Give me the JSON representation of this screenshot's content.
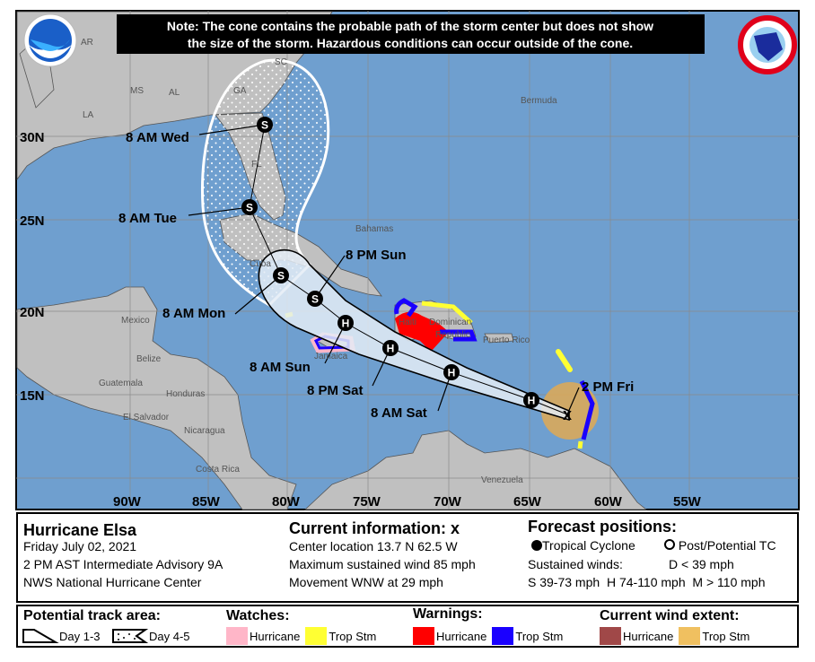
{
  "note": {
    "line1": "Note: The cone contains the probable path of the storm center but does not show",
    "line2": "the size of the storm. Hazardous conditions can occur outside of the cone."
  },
  "logos": {
    "noaa": "NOAA",
    "nws": "NATIONAL WEATHER SERVICE"
  },
  "map": {
    "lat_ticks": [
      "30N",
      "25N",
      "20N",
      "15N"
    ],
    "lon_ticks": [
      "90W",
      "85W",
      "80W",
      "75W",
      "70W",
      "65W",
      "60W",
      "55W"
    ],
    "states": [
      "AR",
      "MS",
      "AL",
      "LA",
      "GA",
      "SC",
      "FL"
    ],
    "places": [
      "Bermuda",
      "Bahamas",
      "Cuba",
      "Mexico",
      "Haiti",
      "Dominican",
      "Republic",
      "Puerto Rico",
      "Jamaica",
      "Belize",
      "Guatemala",
      "Honduras",
      "El Salvador",
      "Nicaragua",
      "Costa Rica",
      "Venezuela"
    ],
    "forecast": [
      {
        "label": "2 PM Fri",
        "symbol": "x"
      },
      {
        "label": "",
        "symbol": "H"
      },
      {
        "label": "8 AM Sat",
        "symbol": "H"
      },
      {
        "label": "8 PM Sat",
        "symbol": "H"
      },
      {
        "label": "8 AM Sun",
        "symbol": "H"
      },
      {
        "label": "8 PM Sun",
        "symbol": "S"
      },
      {
        "label": "8 AM Mon",
        "symbol": "S"
      },
      {
        "label": "8 AM Tue",
        "symbol": "S"
      },
      {
        "label": "8 AM Wed",
        "symbol": "S"
      }
    ],
    "colors": {
      "ocean": "#6f9fcf",
      "land": "#c0c0c0",
      "hurricane_warning": "#ff0000",
      "ts_warning": "#1a00ff",
      "hurricane_watch": "#ffb6c8",
      "ts_watch": "#ffff33",
      "ts_wind": "#d9a95a",
      "hurricane_wind": "#a04848"
    }
  },
  "info": {
    "storm_name": "Hurricane Elsa",
    "date": "Friday July 02, 2021",
    "advisory": "2 PM AST Intermediate Advisory 9A",
    "center": "NWS National Hurricane Center",
    "current_title": "Current information:",
    "current_symbol": "x",
    "location": "Center location 13.7 N 62.5 W",
    "max_wind": "Maximum sustained wind 85 mph",
    "movement": "Movement WNW at 29 mph",
    "forecast_title": "Forecast positions:",
    "tc": "Tropical Cyclone",
    "post_tc": "Post/Potential TC",
    "sustained": "Sustained winds:",
    "d": "D < 39 mph",
    "s": "S 39-73 mph",
    "h": "H 74-110 mph",
    "m": "M > 110 mph"
  },
  "legend": {
    "track_title": "Potential track area:",
    "day13": "Day 1-3",
    "day45": "Day 4-5",
    "watches_title": "Watches:",
    "warnings_title": "Warnings:",
    "wind_title": "Current wind extent:",
    "hurricane": "Hurricane",
    "trop_stm": "Trop Stm"
  }
}
